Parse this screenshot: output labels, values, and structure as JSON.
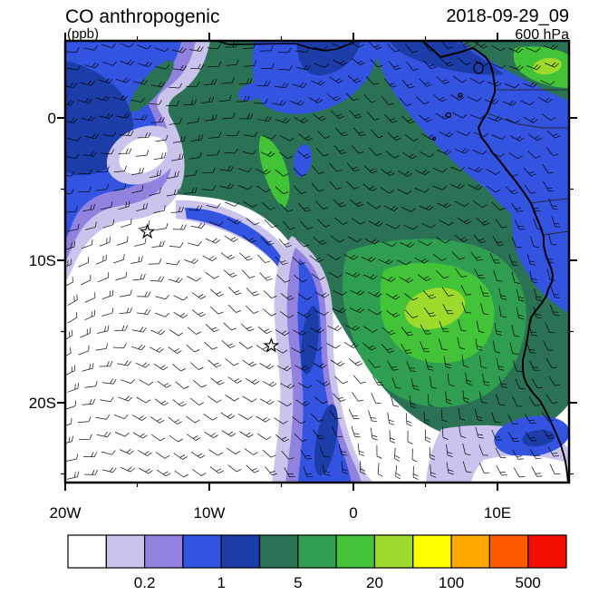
{
  "header": {
    "title": "CO anthropogenic",
    "units_label": "(ppb)",
    "datetime_label": "2018-09-29_09",
    "level_label": "600 hPa"
  },
  "axes": {
    "y_tick_labels": [
      "0",
      "10S",
      "20S"
    ],
    "x_tick_labels": [
      "20W",
      "10W",
      "0",
      "10E"
    ]
  },
  "colorbar": {
    "colors": [
      "#FFFFFF",
      "#CAC4EC",
      "#9182DF",
      "#3354E1",
      "#1C3CA8",
      "#2B7255",
      "#2F9E51",
      "#43C337",
      "#9EDA2C",
      "#FFFF00",
      "#FFA800",
      "#FF5A00",
      "#F50E00"
    ],
    "tick_labels": [
      "0.2",
      "1",
      "5",
      "20",
      "100",
      "500"
    ]
  },
  "markers": [
    {
      "symbol": "star",
      "lon_deg": -14.3,
      "lat_deg": -8.0
    },
    {
      "symbol": "star",
      "lon_deg": -5.7,
      "lat_deg": -16.0
    }
  ],
  "chart_data": {
    "type": "heatmap",
    "title": "CO anthropogenic",
    "units": "ppb",
    "time": "2018-09-29_09",
    "level": "600 hPa",
    "projection": "lat-lon map, South Atlantic / western Africa",
    "x_axis": {
      "tick_labels": [
        "20W",
        "10W",
        "0",
        "10E"
      ],
      "range_deg_lon": [
        -20,
        15
      ]
    },
    "y_axis": {
      "tick_labels": [
        "0",
        "10S",
        "20S"
      ],
      "range_deg_lat": [
        5.4,
        -25.6
      ]
    },
    "contour_levels": [
      0.1,
      0.2,
      0.5,
      1,
      2,
      5,
      10,
      20,
      50,
      100,
      200,
      500
    ],
    "labeled_levels": [
      0.2,
      1,
      5,
      20,
      100,
      500
    ],
    "legend_position": "bottom",
    "overlays": [
      "wind barbs (anticyclonic flow around South Atlantic high, easterlies in the north)",
      "African coastline",
      "country borders",
      "two star markers (islands)"
    ],
    "field_summary": [
      {
        "region": "northern band and central Africa (Gulf of Guinea eastward)",
        "value_ppb": "2-20"
      },
      {
        "region": "plume center-right near 0-8E, 8-18S",
        "value_ppb": "5-50"
      },
      {
        "region": "southwest quadrant, open South Atlantic",
        "value_ppb": "<0.1"
      },
      {
        "region": "northwest corner swirl near 14-20W, 0-10S",
        "value_ppb": "0.1-2"
      },
      {
        "region": "narrow tongue near 5W from 10S to southern edge",
        "value_ppb": "0.2-2"
      },
      {
        "region": "southeast corner patch near coast",
        "value_ppb": "0.1-1"
      }
    ]
  }
}
